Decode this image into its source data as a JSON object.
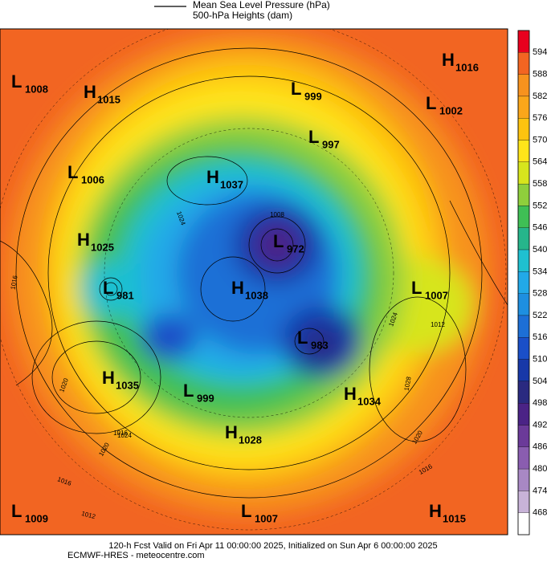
{
  "legend": [
    "Mean Sea Level Pressure (hPa)",
    "500-hPa Heights (dam)"
  ],
  "colorbar": {
    "levels": [
      594,
      588,
      582,
      576,
      570,
      564,
      558,
      552,
      546,
      540,
      534,
      528,
      522,
      516,
      510,
      504,
      498,
      492,
      486,
      480,
      474,
      468
    ],
    "colors": [
      "#e8001e",
      "#f26522",
      "#f7921e",
      "#faa61a",
      "#fdc30f",
      "#ffe51a",
      "#d7e51d",
      "#8fcf3c",
      "#3fbf55",
      "#26b58b",
      "#1fc0d0",
      "#22a9e8",
      "#1e8fe0",
      "#1d6fd6",
      "#1a4fc8",
      "#1838a8",
      "#2a2a80",
      "#4b2386",
      "#6b3a99",
      "#8a5db0",
      "#a888c4",
      "#c8b3d8",
      "#ffffff"
    ]
  },
  "centers": [
    {
      "type": "L",
      "value": 1008
    },
    {
      "type": "H",
      "value": 1015
    },
    {
      "type": "L",
      "value": 999
    },
    {
      "type": "H",
      "value": 1016
    },
    {
      "type": "L",
      "value": 1002
    },
    {
      "type": "L",
      "value": 997
    },
    {
      "type": "L",
      "value": 1006
    },
    {
      "type": "H",
      "value": 1037
    },
    {
      "type": "H",
      "value": 1025
    },
    {
      "type": "L",
      "value": 972
    },
    {
      "type": "L",
      "value": 981
    },
    {
      "type": "H",
      "value": 1038
    },
    {
      "type": "L",
      "value": 1007
    },
    {
      "type": "L",
      "value": 983
    },
    {
      "type": "H",
      "value": 1035
    },
    {
      "type": "L",
      "value": 999
    },
    {
      "type": "H",
      "value": 1034
    },
    {
      "type": "H",
      "value": 1028
    },
    {
      "type": "L",
      "value": 1009
    },
    {
      "type": "L",
      "value": 1007
    },
    {
      "type": "H",
      "value": 1015
    }
  ],
  "contour_labels": [
    1016,
    1024,
    1016,
    1024,
    1012,
    1020,
    1028,
    1020,
    1016,
    1012,
    1024,
    1016,
    1020,
    1008
  ],
  "footer": [
    "120-h Fcst Valid on Fri Apr 11 00:00:00 2025, Initialized on Sun Apr  6 00:00:00 2025",
    "ECMWF-HRES  - meteocentre.com"
  ]
}
